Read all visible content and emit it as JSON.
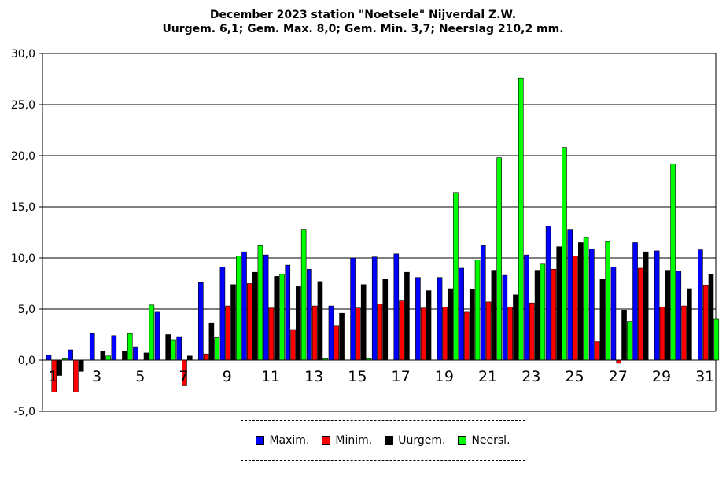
{
  "chart_data": {
    "type": "bar",
    "title": "December 2023 station \"Noetsele\" Nijverdal Z.W.",
    "subtitle": "Uurgem. 6,1; Gem. Max. 8,0; Gem. Min. 3,7;  Neerslag 210,2 mm.",
    "xlabel": "",
    "ylabel": "",
    "ylim": [
      -5,
      30
    ],
    "yticks": [
      "-5,0",
      "0,0",
      "5,0",
      "10,0",
      "15,0",
      "20,0",
      "25,0",
      "30,0"
    ],
    "categories": [
      "1",
      "2",
      "3",
      "4",
      "5",
      "6",
      "7",
      "8",
      "9",
      "10",
      "11",
      "12",
      "13",
      "14",
      "15",
      "16",
      "17",
      "18",
      "19",
      "20",
      "21",
      "22",
      "23",
      "24",
      "25",
      "26",
      "27",
      "28",
      "29",
      "30",
      "31"
    ],
    "xtick_labels_shown": [
      "1",
      "3",
      "5",
      "7",
      "9",
      "11",
      "13",
      "15",
      "17",
      "19",
      "21",
      "23",
      "25",
      "27",
      "29",
      "31"
    ],
    "grid": "horizontal",
    "legend_position": "bottom",
    "series": [
      {
        "name": "Maxim.",
        "color": "#0000ff",
        "values": [
          0.5,
          1.0,
          2.6,
          2.4,
          1.3,
          4.7,
          2.3,
          7.6,
          9.1,
          10.6,
          10.3,
          9.3,
          8.9,
          5.3,
          10.0,
          10.1,
          10.4,
          8.1,
          8.1,
          9.0,
          11.2,
          8.3,
          10.3,
          13.1,
          12.8,
          10.9,
          9.1,
          11.5,
          10.7,
          8.7,
          10.8
        ]
      },
      {
        "name": "Minim.",
        "color": "#ff0000",
        "values": [
          -3.1,
          -3.1,
          0.0,
          0.0,
          0.0,
          0.0,
          -2.5,
          0.6,
          5.3,
          7.5,
          5.1,
          3.0,
          5.3,
          3.4,
          5.1,
          5.5,
          5.8,
          5.1,
          5.2,
          4.7,
          5.7,
          5.2,
          5.6,
          8.9,
          10.2,
          1.8,
          -0.3,
          9.0,
          5.2,
          5.3,
          7.3
        ]
      },
      {
        "name": "Uurgem.",
        "color": "#000000",
        "values": [
          -1.5,
          -1.1,
          0.9,
          0.9,
          0.7,
          2.5,
          0.4,
          3.6,
          7.4,
          8.6,
          8.2,
          7.2,
          7.7,
          4.6,
          7.4,
          7.9,
          8.6,
          6.8,
          7.0,
          6.9,
          8.8,
          6.4,
          8.8,
          11.1,
          11.5,
          7.9,
          4.9,
          10.6,
          8.8,
          7.0,
          8.4
        ]
      },
      {
        "name": "Neersl.",
        "color": "#00ff00",
        "values": [
          0.2,
          0.0,
          0.4,
          2.6,
          5.4,
          2.0,
          0.0,
          2.2,
          10.2,
          11.2,
          8.4,
          12.8,
          0.2,
          0.0,
          0.2,
          0.0,
          0.0,
          0.0,
          16.4,
          9.8,
          19.8,
          27.6,
          9.4,
          20.8,
          12.0,
          11.6,
          3.8,
          0.0,
          19.2,
          0.0,
          4.0
        ]
      }
    ]
  }
}
